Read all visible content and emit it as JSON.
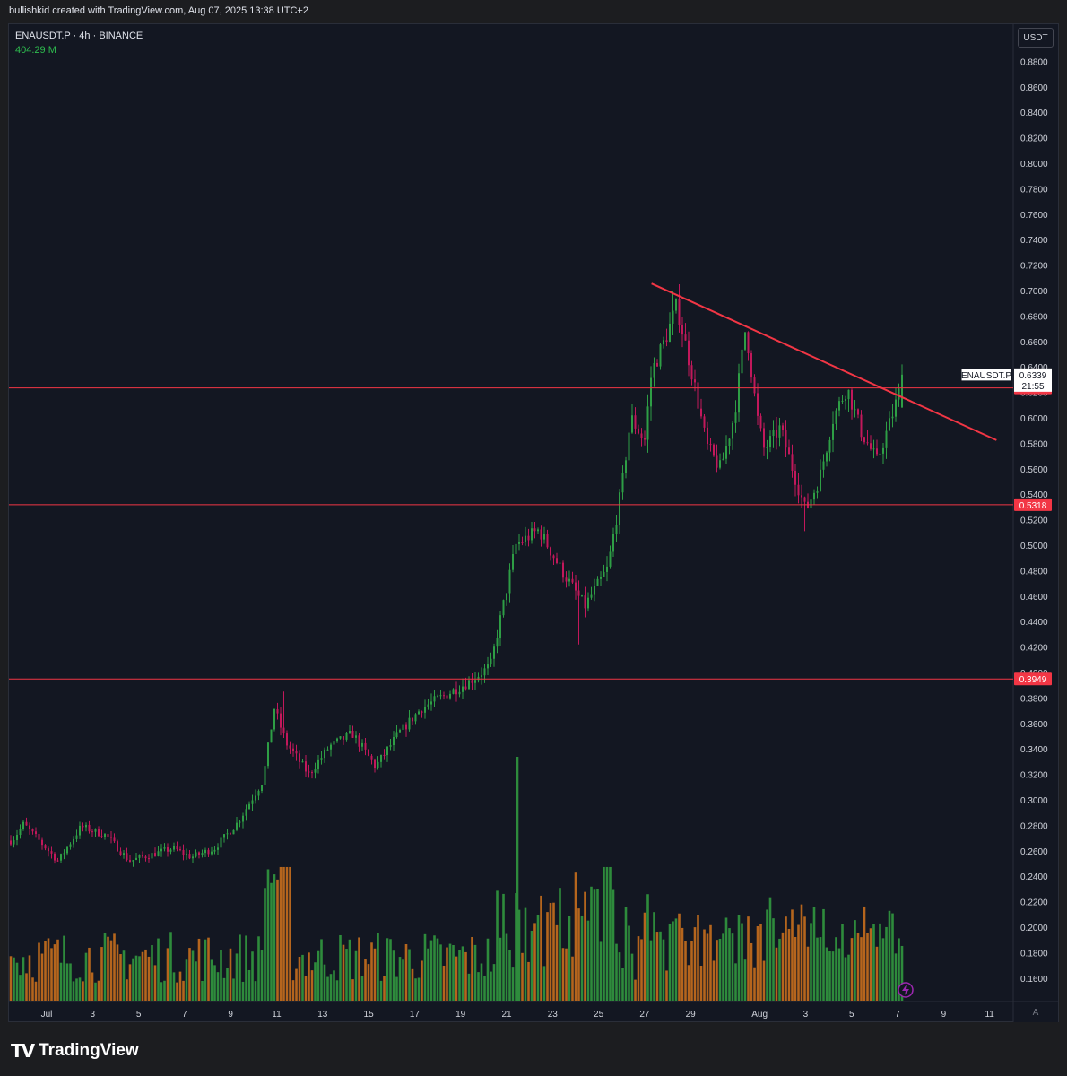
{
  "header": {
    "credit": "bullishkid created with TradingView.com, Aug 07, 2025 13:38 UTC+2"
  },
  "legend": {
    "symbol": "ENAUSDT.P · 4h · BINANCE",
    "volume": "404.29 M"
  },
  "buttons": {
    "currency": "USDT",
    "auto_scale": "A"
  },
  "brand": {
    "logo_mark": "TV",
    "logo_text": "TradingView"
  },
  "colors": {
    "background": "#131722",
    "up": "#2e9e45",
    "down": "#c2185b",
    "level_line": "#f23645",
    "trendline": "#f23645",
    "vol_up": "#2e8b3c",
    "vol_down": "#b5651d"
  },
  "chart_data": {
    "type": "candlestick",
    "symbol": "ENAUSDT.P",
    "interval": "4h",
    "exchange": "BINANCE",
    "y_axis": {
      "unit": "USDT",
      "range": [
        0.15,
        0.89
      ],
      "ticks": [
        "0.8800",
        "0.8600",
        "0.8400",
        "0.8200",
        "0.8000",
        "0.7800",
        "0.7600",
        "0.7400",
        "0.7200",
        "0.7000",
        "0.6800",
        "0.6600",
        "0.6400",
        "0.6200",
        "0.6000",
        "0.5800",
        "0.5600",
        "0.5400",
        "0.5200",
        "0.5000",
        "0.4800",
        "0.4600",
        "0.4400",
        "0.4200",
        "0.4000",
        "0.3800",
        "0.3600",
        "0.3400",
        "0.3200",
        "0.3000",
        "0.2800",
        "0.2600",
        "0.2400",
        "0.2200",
        "0.2000",
        "0.1800",
        "0.1600"
      ]
    },
    "x_axis": {
      "ticks": [
        {
          "label": "Jul",
          "day": 0
        },
        {
          "label": "3",
          "day": 2
        },
        {
          "label": "5",
          "day": 4
        },
        {
          "label": "7",
          "day": 6
        },
        {
          "label": "9",
          "day": 8
        },
        {
          "label": "11",
          "day": 10
        },
        {
          "label": "13",
          "day": 12
        },
        {
          "label": "15",
          "day": 14
        },
        {
          "label": "17",
          "day": 16
        },
        {
          "label": "19",
          "day": 18
        },
        {
          "label": "21",
          "day": 20
        },
        {
          "label": "23",
          "day": 22
        },
        {
          "label": "25",
          "day": 24
        },
        {
          "label": "27",
          "day": 26
        },
        {
          "label": "29",
          "day": 28
        },
        {
          "label": "Aug",
          "day": 31
        },
        {
          "label": "3",
          "day": 33
        },
        {
          "label": "5",
          "day": 35
        },
        {
          "label": "7",
          "day": 37
        },
        {
          "label": "9",
          "day": 39
        },
        {
          "label": "11",
          "day": 41
        }
      ]
    },
    "price_path_key_points": [
      {
        "day": -1.5,
        "price": 0.268
      },
      {
        "day": -1.0,
        "price": 0.281
      },
      {
        "day": 0.5,
        "price": 0.252
      },
      {
        "day": 1.5,
        "price": 0.279
      },
      {
        "day": 2.6,
        "price": 0.272
      },
      {
        "day": 3.6,
        "price": 0.252
      },
      {
        "day": 5.5,
        "price": 0.262
      },
      {
        "day": 6.3,
        "price": 0.255
      },
      {
        "day": 7.3,
        "price": 0.262
      },
      {
        "day": 8.3,
        "price": 0.282
      },
      {
        "day": 9.4,
        "price": 0.315
      },
      {
        "day": 9.9,
        "price": 0.372
      },
      {
        "day": 10.4,
        "price": 0.345
      },
      {
        "day": 11.4,
        "price": 0.32
      },
      {
        "day": 12.3,
        "price": 0.342
      },
      {
        "day": 13.3,
        "price": 0.352
      },
      {
        "day": 14.3,
        "price": 0.326
      },
      {
        "day": 15.3,
        "price": 0.352
      },
      {
        "day": 16.3,
        "price": 0.372
      },
      {
        "day": 17.3,
        "price": 0.382
      },
      {
        "day": 18.3,
        "price": 0.392
      },
      {
        "day": 19.3,
        "price": 0.405
      },
      {
        "day": 20.4,
        "price": 0.5
      },
      {
        "day": 21.4,
        "price": 0.512
      },
      {
        "day": 22.4,
        "price": 0.48
      },
      {
        "day": 23.4,
        "price": 0.452
      },
      {
        "day": 24.4,
        "price": 0.482
      },
      {
        "day": 25.0,
        "price": 0.545
      },
      {
        "day": 25.4,
        "price": 0.6
      },
      {
        "day": 26.0,
        "price": 0.582
      },
      {
        "day": 26.3,
        "price": 0.636
      },
      {
        "day": 26.9,
        "price": 0.662
      },
      {
        "day": 27.4,
        "price": 0.688
      },
      {
        "day": 28.1,
        "price": 0.632
      },
      {
        "day": 28.7,
        "price": 0.578
      },
      {
        "day": 29.3,
        "price": 0.56
      },
      {
        "day": 29.9,
        "price": 0.602
      },
      {
        "day": 30.4,
        "price": 0.672
      },
      {
        "day": 30.9,
        "price": 0.6
      },
      {
        "day": 31.2,
        "price": 0.575
      },
      {
        "day": 31.9,
        "price": 0.592
      },
      {
        "day": 32.4,
        "price": 0.562
      },
      {
        "day": 33.0,
        "price": 0.527
      },
      {
        "day": 33.6,
        "price": 0.552
      },
      {
        "day": 34.2,
        "price": 0.6
      },
      {
        "day": 34.8,
        "price": 0.624
      },
      {
        "day": 35.4,
        "price": 0.59
      },
      {
        "day": 36.1,
        "price": 0.566
      },
      {
        "day": 36.7,
        "price": 0.598
      },
      {
        "day": 37.3,
        "price": 0.634
      }
    ],
    "volume_range": [
      0,
      1.0
    ],
    "levels": [
      {
        "price": 0.6235,
        "label": "0.6235"
      },
      {
        "price": 0.5318,
        "label": "0.5318"
      },
      {
        "price": 0.3949,
        "label": "0.3949"
      }
    ],
    "trendline": {
      "start": {
        "day": 26.3,
        "price": 0.7055
      },
      "end": {
        "day": 41.3,
        "price": 0.5825
      }
    },
    "last_price": {
      "symbol": "ENAUSDT.P",
      "price": "0.6339",
      "countdown": "21:55"
    }
  }
}
